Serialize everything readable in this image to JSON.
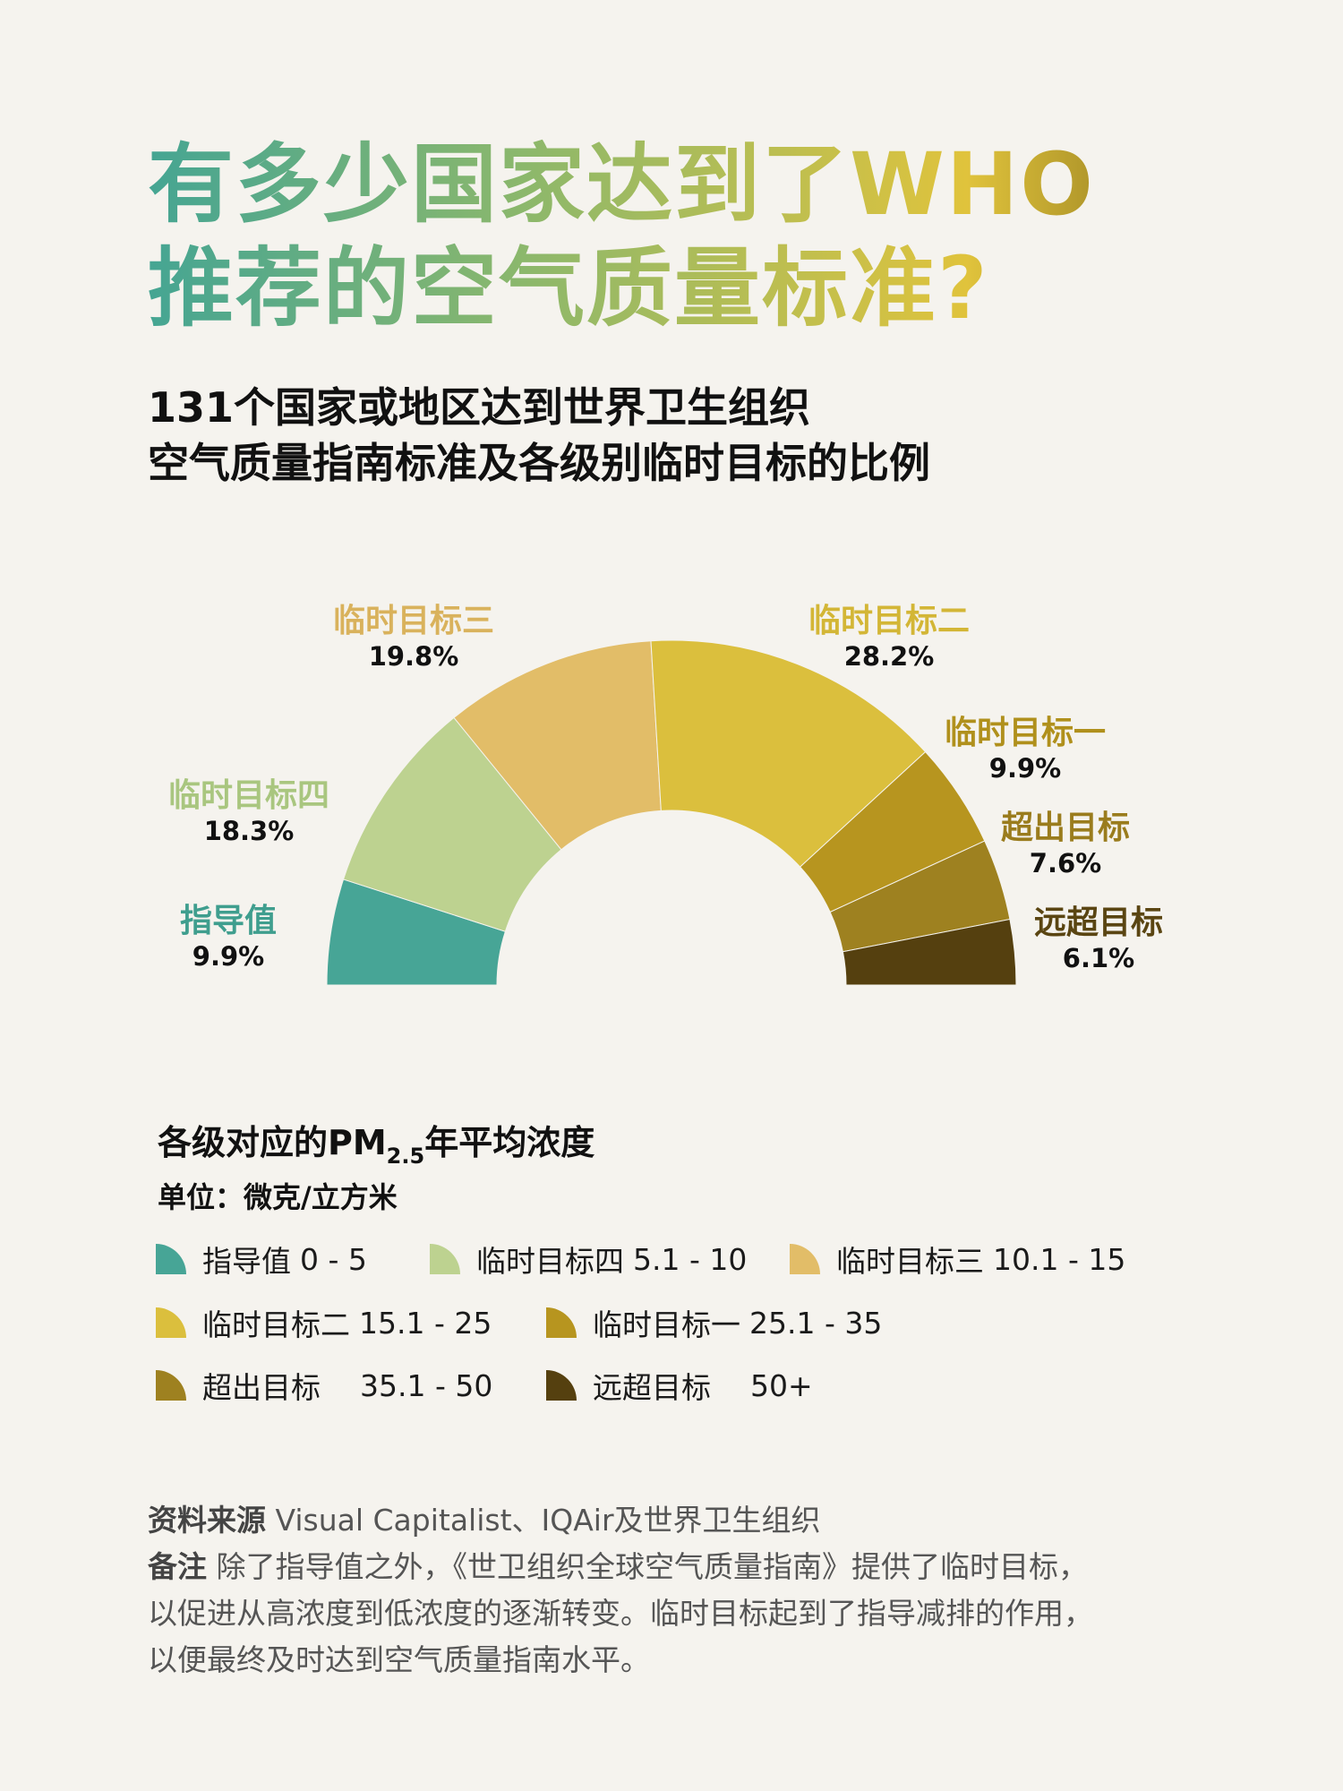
{
  "title": {
    "line1": "有多少国家达到了WHO",
    "line2": "推荐的空气质量标准?"
  },
  "subtitle": {
    "line1": "131个国家或地区达到世界卫生组织",
    "line2": "空气质量指南标准及各级别临时目标的比例"
  },
  "chart_data": {
    "type": "pie",
    "variant": "half-donut",
    "categories": [
      "指导值",
      "临时目标四",
      "临时目标三",
      "临时目标二",
      "临时目标一",
      "超出目标",
      "远超目标"
    ],
    "values": [
      9.9,
      18.3,
      19.8,
      28.2,
      9.9,
      7.6,
      6.1
    ],
    "value_labels": [
      "9.9%",
      "18.3%",
      "19.8%",
      "28.2%",
      "9.9%",
      "7.6%",
      "6.1%"
    ],
    "colors": [
      "#47a596",
      "#bdd290",
      "#e2bd68",
      "#dbbf3d",
      "#b7951f",
      "#9e8120",
      "#55400f"
    ],
    "label_colors": [
      "#3f9e8e",
      "#a9c67f",
      "#d9b25c",
      "#d3b636",
      "#b0901c",
      "#9a7c1d",
      "#5a4512"
    ]
  },
  "legend": {
    "title_prefix": "各级对应的PM",
    "title_sub": "2.5",
    "title_suffix": "年平均浓度",
    "unit": "单位：微克/立方米",
    "items": [
      {
        "name": "指导值",
        "range": "0 - 5",
        "color": "#47a596"
      },
      {
        "name": "临时目标四",
        "range": "5.1 - 10",
        "color": "#bdd290"
      },
      {
        "name": "临时目标三",
        "range": "10.1 - 15",
        "color": "#e2bd68"
      },
      {
        "name": "临时目标二",
        "range": "15.1 - 25",
        "color": "#dbbf3d"
      },
      {
        "name": "临时目标一",
        "range": "25.1 - 35",
        "color": "#b7951f"
      },
      {
        "name": "超出目标",
        "range": "35.1 - 50",
        "color": "#9e8120"
      },
      {
        "name": "远超目标",
        "range": "50+",
        "color": "#55400f"
      }
    ]
  },
  "footer": {
    "source_label": "资料来源",
    "source_text": "Visual Capitalist、IQAir及世界卫生组织",
    "note_label": "备注",
    "note_line1": "除了指导值之外，《世卫组织全球空气质量指南》提供了临时目标，",
    "note_line2": "以促进从高浓度到低浓度的逐渐转变。临时目标起到了指导减排的作用，",
    "note_line3": "以便最终及时达到空气质量指南水平。"
  }
}
